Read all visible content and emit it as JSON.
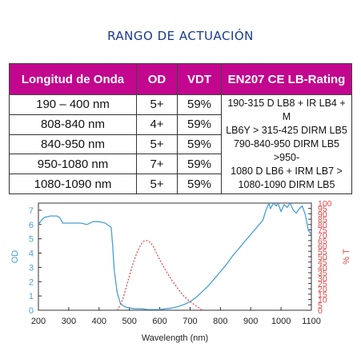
{
  "title": "RANGO DE ACTUACIÓN",
  "table": {
    "headers": [
      "Longitud de Onda",
      "OD",
      "VDT",
      "EN207 CE LB-Rating"
    ],
    "rows": [
      {
        "wavelength": "190 – 400 nm",
        "od": "5+",
        "vdt": "59%"
      },
      {
        "wavelength": "808-840 nm",
        "od": "4+",
        "vdt": "59%"
      },
      {
        "wavelength": "840-950 nm",
        "od": "5+",
        "vdt": "59%"
      },
      {
        "wavelength": "950-1080 nm",
        "od": "7+",
        "vdt": "59%"
      },
      {
        "wavelength": "1080-1090 nm",
        "od": "5+",
        "vdt": "59%"
      }
    ],
    "rating_lines": [
      "190-315 D LB8 + IR LB4 + M",
      "LB6Y > 315-425 DIRM LB5",
      "790-840-950 DIRM LB5 >950-",
      "1080 D LB6 + IRM LB7 >",
      "1080-1090 DIRM LB5"
    ]
  },
  "chart_data": {
    "type": "line",
    "xlabel": "Wavelength (nm)",
    "ylabel_left": "OD",
    "ylabel_right": "% T",
    "xlim": [
      200,
      1100
    ],
    "xticks": [
      200,
      300,
      400,
      500,
      600,
      700,
      800,
      900,
      1000,
      1100
    ],
    "ylim_left": [
      0,
      7.5
    ],
    "yticks_left": [
      0,
      1,
      2,
      3,
      4,
      5,
      6,
      7
    ],
    "ylim_right": [
      0,
      100
    ],
    "yticks_right": [
      0,
      5,
      10,
      15,
      20,
      25,
      30,
      35,
      40,
      45,
      50,
      55,
      60,
      65,
      70,
      75,
      80,
      85,
      90,
      95,
      100
    ],
    "series": [
      {
        "name": "OD",
        "axis": "left",
        "color": "#4a9fd4",
        "style": "solid",
        "x": [
          200,
          210,
          220,
          240,
          260,
          270,
          280,
          300,
          340,
          360,
          380,
          400,
          420,
          440,
          445,
          450,
          460,
          470,
          480,
          490,
          500,
          520,
          540,
          560,
          580,
          600,
          620,
          640,
          660,
          680,
          700,
          720,
          740,
          760,
          780,
          800,
          820,
          840,
          860,
          880,
          900,
          920,
          940,
          950,
          960,
          965,
          975,
          985,
          990,
          1000,
          1010,
          1020,
          1030,
          1040,
          1050,
          1060,
          1070,
          1080,
          1090,
          1100
        ],
        "y": [
          6.0,
          6.3,
          6.5,
          6.6,
          6.6,
          6.5,
          6.1,
          6.1,
          6.1,
          6.0,
          6.2,
          6.2,
          6.1,
          5.8,
          4.5,
          2.8,
          1.2,
          0.5,
          0.3,
          0.2,
          0.15,
          0.1,
          0.1,
          0.05,
          0.05,
          0.05,
          0.1,
          0.15,
          0.25,
          0.4,
          0.6,
          0.9,
          1.3,
          1.7,
          2.2,
          2.7,
          3.2,
          3.8,
          4.3,
          4.8,
          5.3,
          5.8,
          6.3,
          7.0,
          7.5,
          7.1,
          7.5,
          7.3,
          7.5,
          6.9,
          7.4,
          7.2,
          7.5,
          7.0,
          6.8,
          7.1,
          7.3,
          6.7,
          5.6,
          5.3
        ]
      },
      {
        "name": "% T",
        "axis": "right",
        "color": "#e34a4a",
        "style": "dotted",
        "x": [
          460,
          470,
          480,
          490,
          500,
          510,
          520,
          530,
          540,
          550,
          560,
          570,
          580,
          590,
          600,
          620,
          640,
          660,
          680,
          700,
          720,
          730,
          740
        ],
        "y": [
          0,
          5,
          12,
          22,
          32,
          42,
          50,
          57,
          62,
          65,
          65,
          63,
          59,
          53,
          47,
          37,
          28,
          20,
          13,
          8,
          4,
          2,
          0
        ]
      }
    ]
  }
}
